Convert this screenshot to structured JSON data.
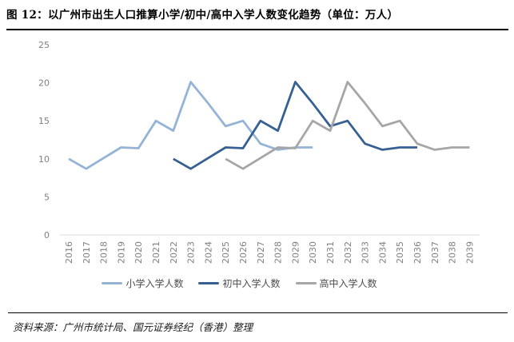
{
  "header": {
    "title": "图 12：以广州市出生人口推算小学/初中/高中入学人数变化趋势（单位：万人）"
  },
  "chart_data": {
    "type": "line",
    "title": "以广州市出生人口推算小学/初中/高中入学人数变化趋势",
    "unit": "万人",
    "categories": [
      "2016",
      "2017",
      "2018",
      "2019",
      "2020",
      "2021",
      "2022",
      "2023",
      "2024",
      "2025",
      "2026",
      "2027",
      "2028",
      "2029",
      "2030",
      "2031",
      "2032",
      "2033",
      "2034",
      "2035",
      "2036",
      "2037",
      "2038",
      "2039"
    ],
    "yticks": [
      0,
      5,
      10,
      15,
      20,
      25
    ],
    "ylim": [
      0,
      25
    ],
    "grid": false,
    "legend_position": "bottom",
    "series": [
      {
        "name": "小学入学人数",
        "color": "#95B3D7",
        "start_year": 2016,
        "values": [
          10.0,
          8.7,
          10.1,
          11.5,
          11.4,
          15.0,
          13.7,
          20.1,
          17.3,
          14.3,
          15.0,
          12.0,
          11.2,
          11.5,
          11.5
        ]
      },
      {
        "name": "初中入学人数",
        "color": "#376092",
        "start_year": 2022,
        "values": [
          10.0,
          8.7,
          10.1,
          11.5,
          11.4,
          15.0,
          13.7,
          20.1,
          17.3,
          14.3,
          15.0,
          12.0,
          11.2,
          11.5,
          11.5
        ]
      },
      {
        "name": "高中入学人数",
        "color": "#A6A6A6",
        "start_year": 2025,
        "values": [
          10.0,
          8.7,
          10.1,
          11.5,
          11.4,
          15.0,
          13.7,
          20.1,
          17.3,
          14.3,
          15.0,
          12.0,
          11.2,
          11.5,
          11.5
        ]
      }
    ],
    "axis_color": "#D9D9D9",
    "tick_label_color": "#808080"
  },
  "footer": {
    "source": "资料来源：广州市统计局、国元证券经纪（香港）整理"
  }
}
